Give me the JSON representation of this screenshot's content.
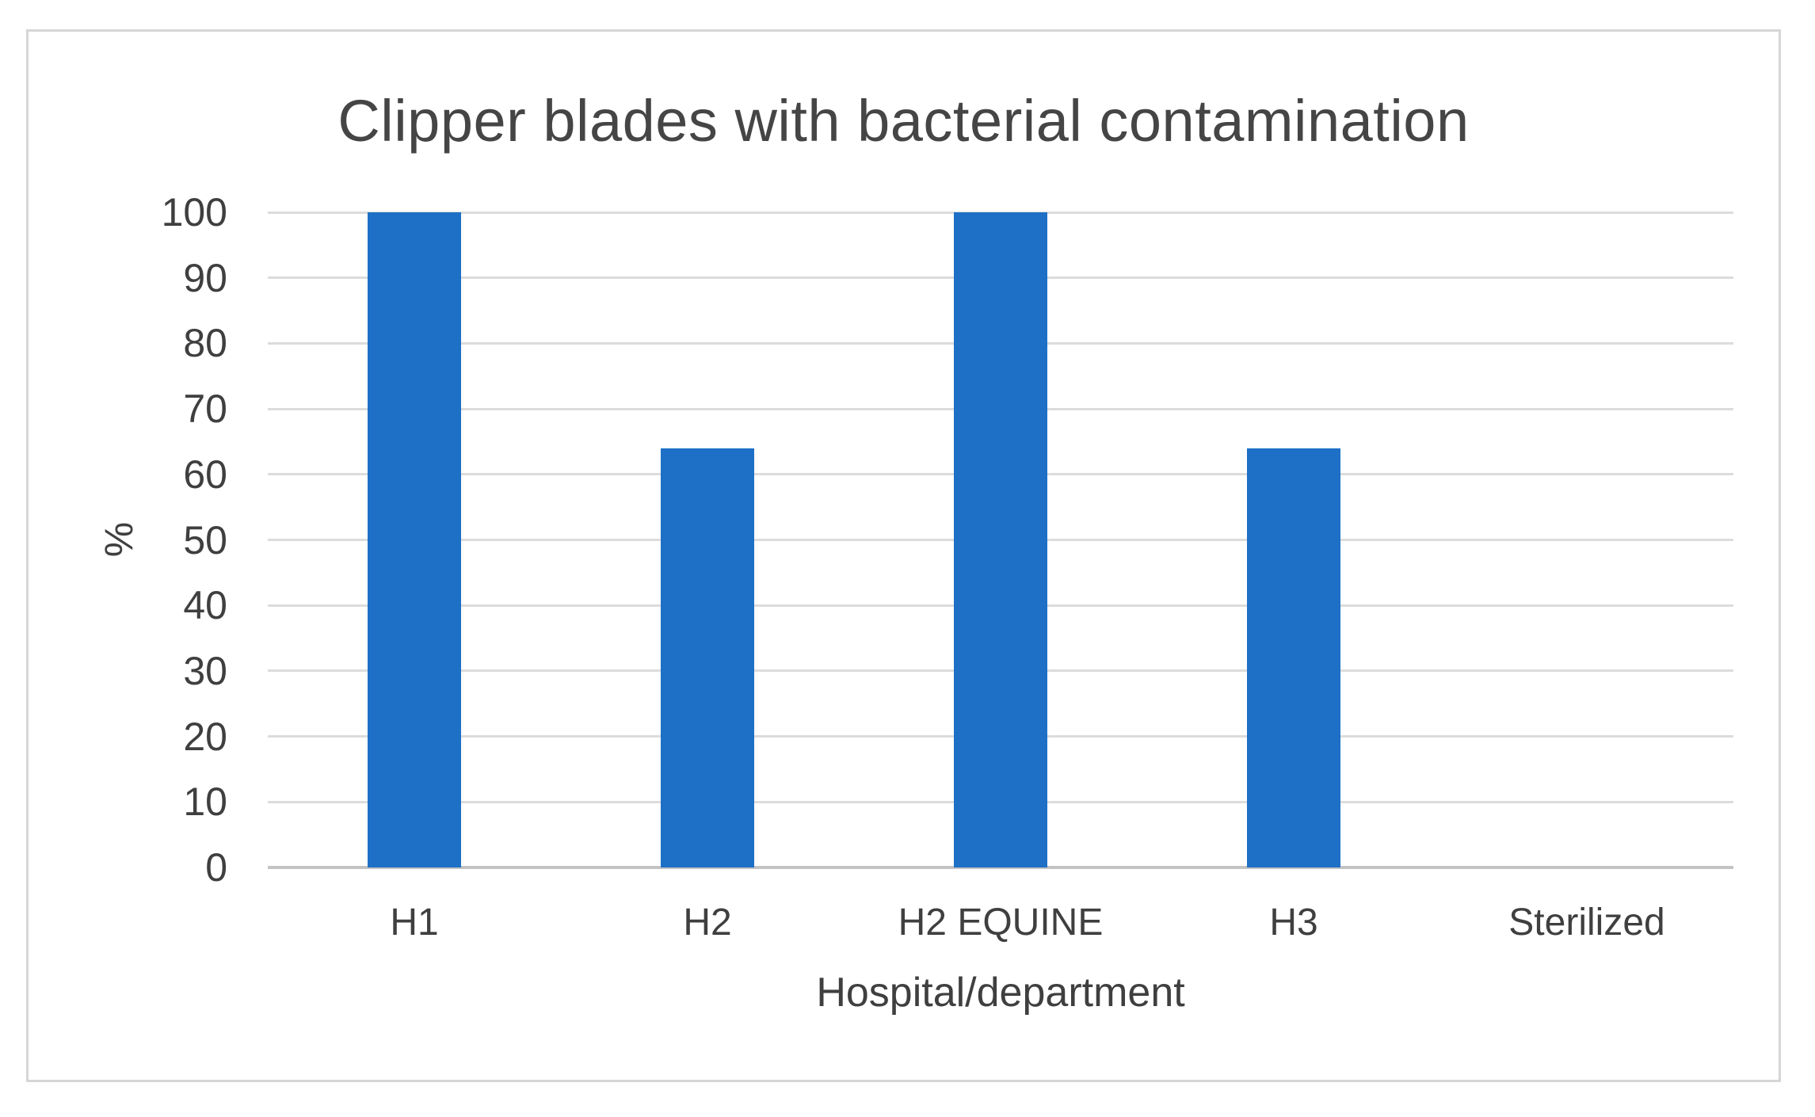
{
  "chart_data": {
    "type": "bar",
    "title": "Clipper blades with bacterial contamination",
    "categories": [
      "H1",
      "H2",
      "H2 EQUINE",
      "H3",
      "Sterilized"
    ],
    "values": [
      100,
      64,
      100,
      64,
      0
    ],
    "xlabel": "Hospital/department",
    "ylabel": "%",
    "ylim": [
      0,
      100
    ],
    "yticks": [
      0,
      10,
      20,
      30,
      40,
      50,
      60,
      70,
      80,
      90,
      100
    ],
    "grid": true,
    "legend_position": "none",
    "colors": {
      "bar": "#1e70c6",
      "gridline": "#dcdcdc",
      "axis_line": "#c3c3c3",
      "text": "#3f3f3f",
      "title_text": "#454545",
      "figure_border": "#d6d6d6",
      "background": "#ffffff"
    }
  }
}
